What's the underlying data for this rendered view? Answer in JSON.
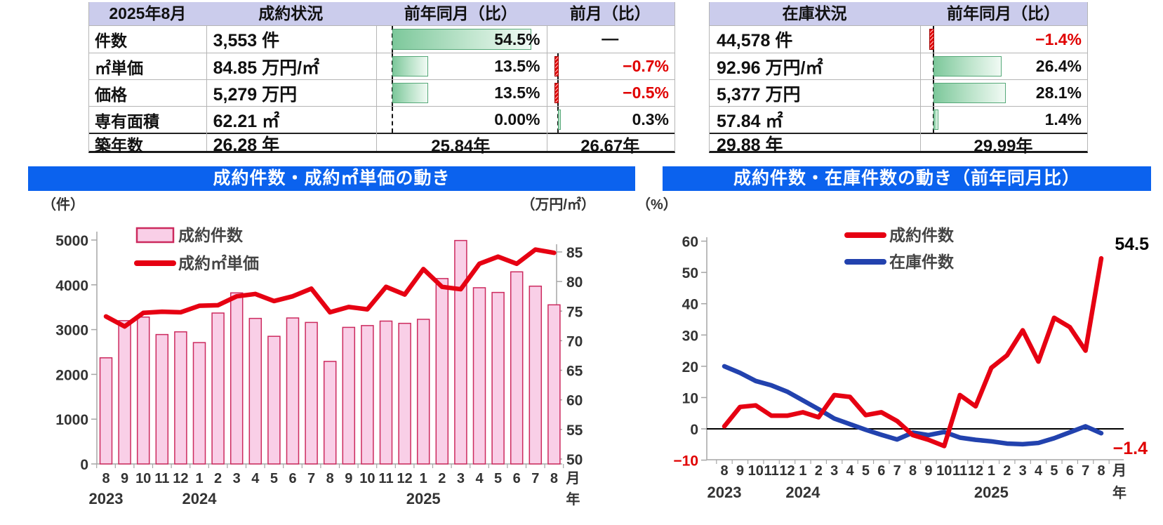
{
  "colors": {
    "title_bar_bg": "#0b62ee",
    "table_header_bg": "#cbccec",
    "negative_text": "#e00000",
    "positive_bar_green": "#7dc89b",
    "negative_bar_red": "#e00000",
    "contract_bar_fill": "#f9cfe7",
    "contract_bar_border": "#cc2a5e",
    "price_line_red": "#e60012",
    "contracts_line_red": "#e60012",
    "stock_line_blue": "#2242ae",
    "axis_gray": "#a6a6a6",
    "tick_text": "#333333"
  },
  "tables": {
    "left": {
      "period": "2025年8月",
      "headers": [
        "成約状況",
        "前年同月（比）",
        "前月（比）"
      ],
      "rows": [
        {
          "label": "件数",
          "value": "3,553",
          "unit": "件",
          "yoy_text": "54.5%",
          "yoy_pct": 54.5,
          "mom_text": "—",
          "mom_pct": null
        },
        {
          "label": "㎡単価",
          "value": "84.85",
          "unit": "万円/㎡",
          "yoy_text": "13.5%",
          "yoy_pct": 13.5,
          "mom_text": "−0.7%",
          "mom_pct": -0.7
        },
        {
          "label": "価格",
          "value": "5,279",
          "unit": "万円",
          "yoy_text": "13.5%",
          "yoy_pct": 13.5,
          "mom_text": "−0.5%",
          "mom_pct": -0.5
        },
        {
          "label": "専有面積",
          "value": "62.21",
          "unit": "㎡",
          "yoy_text": "0.00%",
          "yoy_pct": 0,
          "mom_text": "0.3%",
          "mom_pct": 0.3
        },
        {
          "label": "築年数",
          "value": "26.28",
          "unit": "年",
          "yoy_text": "25.84年",
          "yoy_pct": null,
          "mom_text": "26.67年",
          "mom_pct": null
        }
      ]
    },
    "right": {
      "headers": [
        "在庫状況",
        "前年同月（比）"
      ],
      "rows": [
        {
          "value": "44,578",
          "unit": "件",
          "yoy_text": "−1.4%",
          "yoy_pct": -1.4
        },
        {
          "value": "92.96",
          "unit": "万円/㎡",
          "yoy_text": "26.4%",
          "yoy_pct": 26.4
        },
        {
          "value": "5,377",
          "unit": "万円",
          "yoy_text": "28.1%",
          "yoy_pct": 28.1
        },
        {
          "value": "57.84",
          "unit": "㎡",
          "yoy_text": "1.4%",
          "yoy_pct": 1.4
        },
        {
          "value": "29.88",
          "unit": "年",
          "yoy_text": "29.99年",
          "yoy_pct": null
        }
      ]
    }
  },
  "chart_data": [
    {
      "type": "bar",
      "title": "成約件数・成約㎡単価の動き",
      "left_axis_label": "（件）",
      "right_axis_label": "（万円/㎡）",
      "x_month_labels": [
        "8",
        "9",
        "10",
        "11",
        "12",
        "1",
        "2",
        "3",
        "4",
        "5",
        "6",
        "7",
        "8",
        "9",
        "10",
        "11",
        "12",
        "1",
        "2",
        "3",
        "4",
        "5",
        "6",
        "7",
        "8"
      ],
      "x_axis_suffix": "月",
      "year_axis_suffix": "年",
      "years": [
        {
          "label": "2023",
          "index": 0
        },
        {
          "label": "2024",
          "index": 5
        },
        {
          "label": "2025",
          "index": 17
        }
      ],
      "legend": [
        "成約件数",
        "成約㎡単価"
      ],
      "bar_series": {
        "name": "成約件数",
        "values": [
          2370,
          3200,
          3280,
          2890,
          2950,
          2710,
          3370,
          3820,
          3250,
          2850,
          3260,
          3160,
          2290,
          3050,
          3090,
          3190,
          3140,
          3230,
          4140,
          4990,
          3935,
          3830,
          4290,
          3970,
          3553
        ]
      },
      "line_series": {
        "name": "成約㎡単価",
        "values": [
          74.1,
          72.4,
          74.7,
          74.9,
          74.8,
          75.9,
          76.0,
          77.5,
          77.9,
          76.7,
          77.5,
          78.8,
          74.8,
          75.7,
          75.3,
          79.1,
          77.8,
          82.1,
          79.1,
          78.7,
          83.0,
          84.2,
          83.0,
          85.4,
          84.85
        ]
      },
      "left_ylim": [
        0,
        5000
      ],
      "left_ticks": [
        0,
        1000,
        2000,
        3000,
        4000,
        5000
      ],
      "right_ylim": [
        50,
        85
      ],
      "right_ticks": [
        50,
        55,
        60,
        65,
        70,
        75,
        80,
        85
      ],
      "grid": false,
      "legend_position": "top-left-inside"
    },
    {
      "type": "line",
      "title": "成約件数・在庫件数の動き（前年同月比）",
      "axis_label": "（%）",
      "x_month_labels": [
        "8",
        "9",
        "10",
        "11",
        "12",
        "1",
        "2",
        "3",
        "4",
        "5",
        "6",
        "7",
        "8",
        "9",
        "10",
        "11",
        "12",
        "1",
        "2",
        "3",
        "4",
        "5",
        "6",
        "7",
        "8"
      ],
      "x_axis_suffix": "月",
      "year_axis_suffix": "年",
      "years": [
        {
          "label": "2023",
          "index": 0
        },
        {
          "label": "2024",
          "index": 5
        },
        {
          "label": "2025",
          "index": 17
        }
      ],
      "ylim": [
        -10,
        60
      ],
      "ticks": [
        -10,
        0,
        10,
        20,
        30,
        40,
        50,
        60
      ],
      "series": [
        {
          "name": "成約件数",
          "color_key": "contracts_line_red",
          "values": [
            0.8,
            7.0,
            7.5,
            4.2,
            4.2,
            5.3,
            3.7,
            10.8,
            10.2,
            4.4,
            5.3,
            2.5,
            -2.0,
            -3.5,
            -5.5,
            10.8,
            7.2,
            19.5,
            23.5,
            31.5,
            21.5,
            35.5,
            32.5,
            25.0,
            54.5
          ]
        },
        {
          "name": "在庫件数",
          "color_key": "stock_line_blue",
          "values": [
            20.0,
            17.9,
            15.3,
            13.9,
            11.9,
            9.1,
            6.3,
            3.3,
            1.5,
            -0.3,
            -1.9,
            -3.4,
            -1.2,
            -2.0,
            -1.0,
            -2.8,
            -3.5,
            -4.0,
            -4.7,
            -4.9,
            -4.5,
            -3.0,
            -1.1,
            0.8,
            -1.4
          ]
        }
      ],
      "annotations": [
        {
          "text": "54.5",
          "color": "#000000",
          "position": "last-point-top"
        },
        {
          "text": "−1.4",
          "color": "#e00000",
          "position": "last-point-bottom"
        }
      ],
      "grid": false,
      "legend_position": "top-center-inside"
    }
  ]
}
